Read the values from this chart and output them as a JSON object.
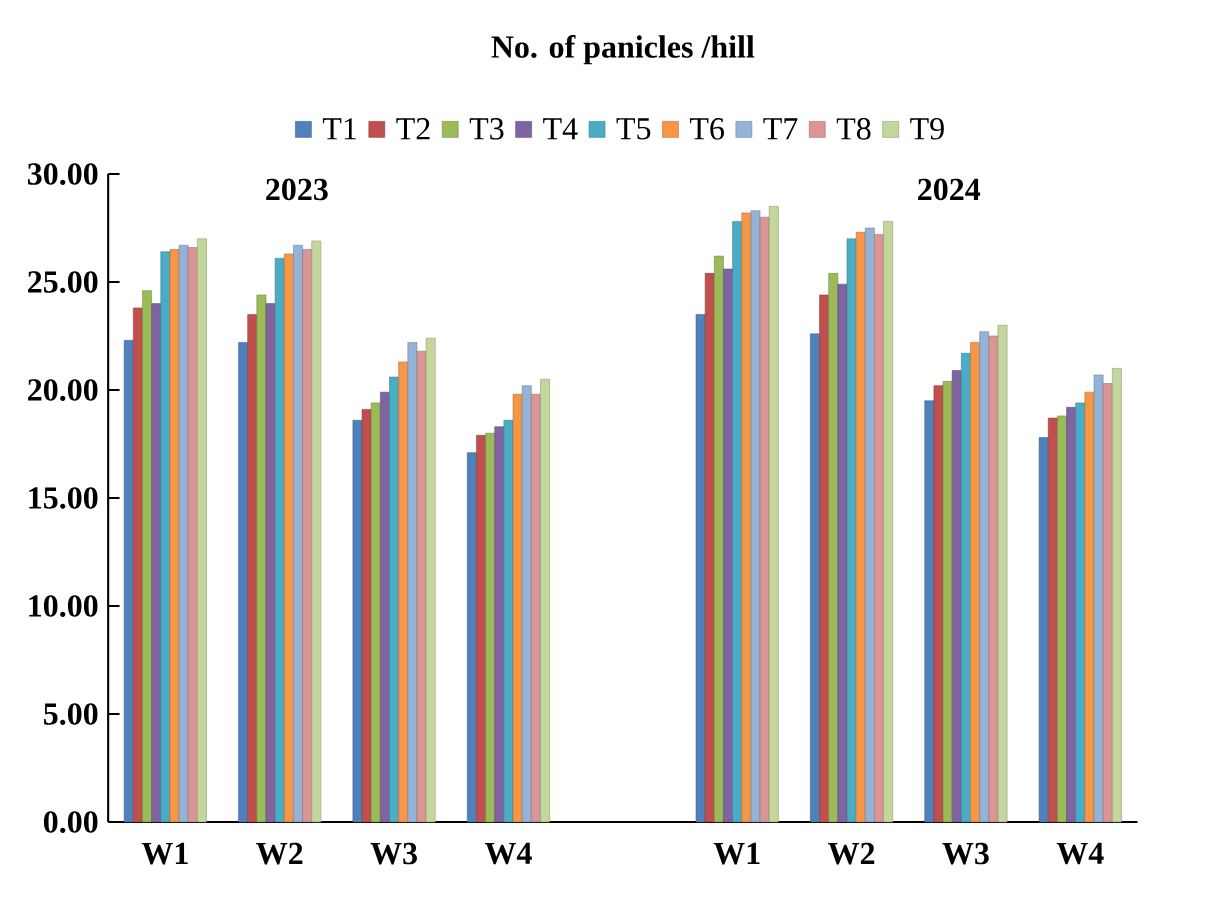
{
  "chart_data": {
    "type": "bar",
    "title": "No. of panicles /hill",
    "categories": [
      "W1",
      "W2",
      "W3",
      "W4",
      null,
      "W1",
      "W2",
      "W3",
      "W4"
    ],
    "series": [
      {
        "name": "T1",
        "color": "#4f81bd",
        "values": [
          22.3,
          22.2,
          18.6,
          17.1,
          null,
          23.5,
          22.6,
          19.5,
          17.8
        ]
      },
      {
        "name": "T2",
        "color": "#c0504d",
        "values": [
          23.8,
          23.5,
          19.1,
          17.9,
          null,
          25.4,
          24.4,
          20.2,
          18.7
        ]
      },
      {
        "name": "T3",
        "color": "#9bbb59",
        "values": [
          24.6,
          24.4,
          19.4,
          18.0,
          null,
          26.2,
          25.4,
          20.4,
          18.8
        ]
      },
      {
        "name": "T4",
        "color": "#8064a2",
        "values": [
          24.0,
          24.0,
          19.9,
          18.3,
          null,
          25.6,
          24.9,
          20.9,
          19.2
        ]
      },
      {
        "name": "T5",
        "color": "#4bacc6",
        "values": [
          26.4,
          26.1,
          20.6,
          18.6,
          null,
          27.8,
          27.0,
          21.7,
          19.4
        ]
      },
      {
        "name": "T6",
        "color": "#f79646",
        "values": [
          26.5,
          26.3,
          21.3,
          19.8,
          null,
          28.2,
          27.3,
          22.2,
          19.9
        ]
      },
      {
        "name": "T7",
        "color": "#95b3d7",
        "values": [
          26.7,
          26.7,
          22.2,
          20.2,
          null,
          28.3,
          27.5,
          22.7,
          20.7
        ]
      },
      {
        "name": "T8",
        "color": "#d99694",
        "values": [
          26.6,
          26.5,
          21.8,
          19.8,
          null,
          28.0,
          27.2,
          22.5,
          20.3
        ]
      },
      {
        "name": "T9",
        "color": "#c3d69b",
        "values": [
          27.0,
          26.9,
          22.4,
          20.5,
          null,
          28.5,
          27.8,
          23.0,
          21.0
        ]
      }
    ],
    "ylim": [
      0,
      30
    ],
    "yticks": [
      {
        "value": 0,
        "label": "0.00"
      },
      {
        "value": 5,
        "label": "5.00"
      },
      {
        "value": 10,
        "label": "10.00"
      },
      {
        "value": 15,
        "label": "15.00"
      },
      {
        "value": 20,
        "label": "20.00"
      },
      {
        "value": 25,
        "label": "25.00"
      },
      {
        "value": 30,
        "label": "30.00"
      }
    ],
    "annotations": [
      "2023",
      "2024"
    ],
    "legend": "top",
    "grid": false
  }
}
